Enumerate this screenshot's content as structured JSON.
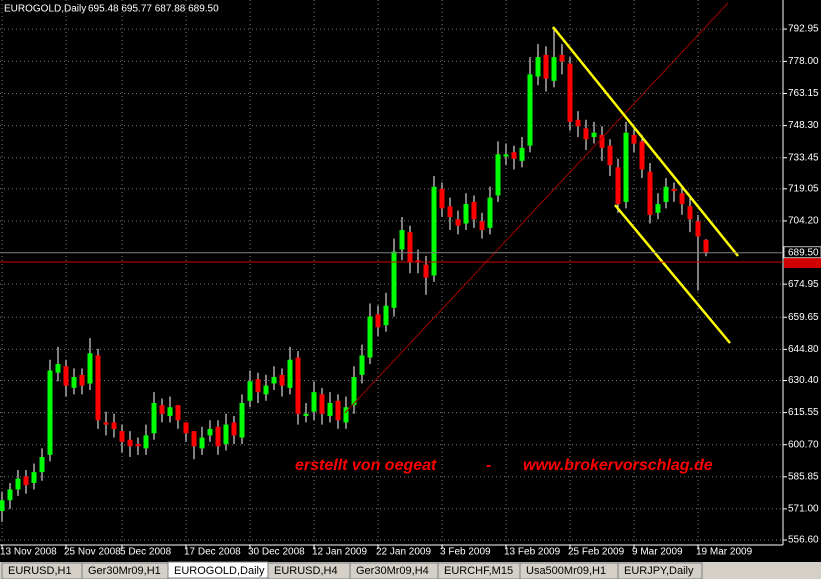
{
  "chart_data": {
    "type": "candlestick",
    "symbol": "EUROGOLD,Daily",
    "quote": "695.48 695.77 687.88 689.50",
    "watermark": [
      "erstellt von oegeat",
      "-",
      "www.brokervorschlag.de"
    ],
    "up_color": "#00ff00",
    "down_color": "#ff0000",
    "wick_color": "#ffffff",
    "grid": true,
    "xlim": [
      -0.25,
      97.625
    ],
    "xticks": [
      {
        "value": 0,
        "label": "13 Nov 2008"
      },
      {
        "value": 8,
        "label": "25 Nov 2008"
      },
      {
        "value": 15,
        "label": "5 Dec 2008"
      },
      {
        "value": 23,
        "label": "17 Dec 2008"
      },
      {
        "value": 31,
        "label": "30 Dec 2008"
      },
      {
        "value": 39,
        "label": "12 Jan 2009"
      },
      {
        "value": 47,
        "label": "22 Jan 2009"
      },
      {
        "value": 55,
        "label": "3 Feb 2009"
      },
      {
        "value": 63,
        "label": "13 Feb 2009"
      },
      {
        "value": 71,
        "label": "25 Feb 2009"
      },
      {
        "value": 79,
        "label": "9 Mar 2009"
      },
      {
        "value": 87,
        "label": "19 Mar 2009"
      }
    ],
    "ylim": [
      554.3,
      806.4
    ],
    "yticks": [
      {
        "value": 792.95,
        "label": "792.95"
      },
      {
        "value": 778,
        "label": "778.00"
      },
      {
        "value": 763.15,
        "label": "763.15"
      },
      {
        "value": 748.3,
        "label": "748.30"
      },
      {
        "value": 733.45,
        "label": "733.45"
      },
      {
        "value": 719.05,
        "label": "719.05"
      },
      {
        "value": 704.2,
        "label": "704.20"
      },
      {
        "value": 674.95,
        "label": "674.95"
      },
      {
        "value": 659.65,
        "label": "659.65"
      },
      {
        "value": 644.8,
        "label": "644.80"
      },
      {
        "value": 630.4,
        "label": "630.40"
      },
      {
        "value": 615.55,
        "label": "615.55"
      },
      {
        "value": 600.7,
        "label": "600.70"
      },
      {
        "value": 585.85,
        "label": "585.85"
      },
      {
        "value": 571,
        "label": "571.00"
      },
      {
        "value": 556.6,
        "label": "556.60"
      }
    ],
    "bid_line": {
      "value": 689.5,
      "label": "689.50"
    },
    "level_line": 685.2,
    "open": [
      570,
      575,
      580,
      586,
      583,
      588,
      596,
      634,
      637,
      627,
      633,
      629,
      642,
      611,
      611,
      607,
      603,
      601,
      599,
      606,
      619,
      614,
      619,
      611,
      607,
      599,
      605,
      609,
      601,
      611,
      604,
      621,
      631,
      624,
      629,
      633,
      627,
      641,
      614,
      616,
      624,
      614,
      621,
      611,
      619,
      633,
      641,
      661,
      656,
      664,
      691,
      699,
      686,
      684,
      679,
      719,
      711,
      705,
      703,
      713,
      704,
      701,
      716,
      734,
      736,
      732,
      739,
      771,
      781,
      769,
      781,
      777,
      751,
      747,
      743,
      744,
      739,
      729,
      713,
      744,
      741,
      727,
      708,
      713,
      719,
      717,
      711,
      704,
      695.48
    ],
    "high": [
      579,
      583,
      589,
      589,
      592,
      599,
      640,
      646,
      640,
      636,
      636,
      650,
      645,
      616,
      615,
      610,
      607,
      604,
      610,
      625,
      622,
      623,
      617,
      611,
      605,
      609,
      612,
      612,
      615,
      614,
      624,
      635,
      634,
      633,
      637,
      636,
      646,
      644,
      620,
      630,
      627,
      625,
      624,
      623,
      637,
      647,
      666,
      665,
      671,
      696,
      706,
      702,
      691,
      688,
      725,
      722,
      715,
      709,
      717,
      716,
      708,
      720,
      741,
      740,
      739,
      743,
      780,
      786,
      785,
      793,
      786,
      780,
      755,
      751,
      750,
      748,
      742,
      733,
      750,
      747,
      744,
      731,
      717,
      724,
      722,
      720,
      715,
      707,
      695.77
    ],
    "low": [
      565,
      571,
      577,
      578,
      580,
      584,
      593,
      630,
      623,
      624,
      624,
      626,
      608,
      605,
      604,
      597,
      595,
      596,
      596,
      603,
      611,
      611,
      608,
      602,
      594,
      596,
      602,
      596,
      598,
      601,
      601,
      618,
      620,
      621,
      626,
      623,
      624,
      610,
      611,
      612,
      610,
      611,
      608,
      608,
      615,
      629,
      638,
      651,
      653,
      660,
      686,
      680,
      680,
      670,
      676,
      706,
      700,
      698,
      700,
      701,
      696,
      698,
      713,
      730,
      728,
      729,
      736,
      767,
      764,
      766,
      772,
      746,
      743,
      737,
      740,
      732,
      725,
      708,
      710,
      736,
      724,
      703,
      705,
      710,
      713,
      707,
      699,
      672,
      687.88
    ],
    "close": [
      575,
      580,
      585,
      582,
      588,
      595,
      635,
      638,
      628,
      632,
      628,
      643,
      612,
      610,
      608,
      602,
      600,
      600,
      605,
      620,
      615,
      618,
      612,
      606,
      600,
      604,
      608,
      600,
      610,
      605,
      620,
      630,
      625,
      628,
      632,
      628,
      640,
      615,
      615,
      625,
      615,
      620,
      612,
      618,
      632,
      642,
      660,
      655,
      665,
      690,
      700,
      685,
      685,
      678,
      720,
      710,
      706,
      702,
      712,
      705,
      700,
      715,
      735,
      735,
      733,
      738,
      772,
      780,
      770,
      780,
      778,
      750,
      748,
      742,
      745,
      738,
      730,
      712,
      745,
      740,
      728,
      707,
      712,
      720,
      718,
      712,
      705,
      697,
      689.5
    ]
  },
  "tabs": [
    "EURUSD,H1",
    "Ger30Mr09,H1",
    "EUROGOLD,Daily",
    "EURUSD,H4",
    "Ger30Mr09,H4",
    "EURCHF,M15",
    "Usa500Mr09,H1",
    "EURJPY,Daily"
  ],
  "active_tab": 2
}
